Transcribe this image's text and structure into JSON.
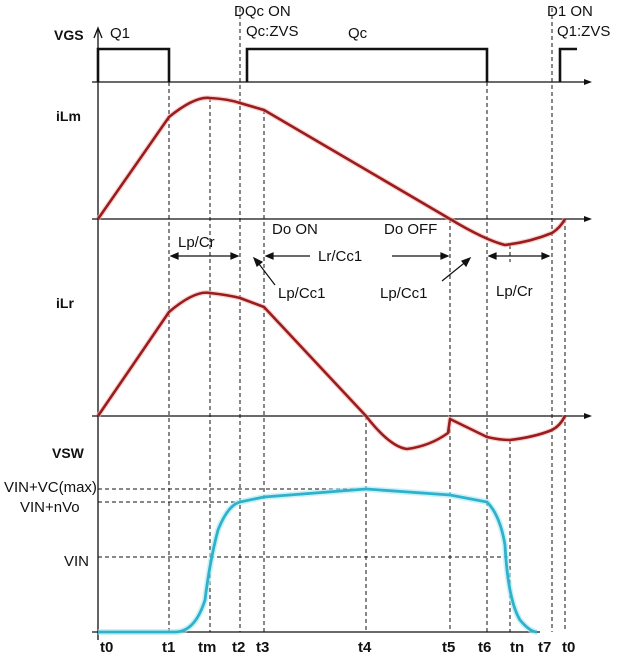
{
  "signals": {
    "vgs": "VGS",
    "ilm": "iLm",
    "ilr": "iLr",
    "vsw": "VSW"
  },
  "gate_labels": {
    "q1": "Q1",
    "dqc_on": "DQc ON",
    "qc_zvs": "Qc:ZVS",
    "qc": "Qc",
    "d1_on": "D1 ON",
    "q1_zvs": "Q1:ZVS"
  },
  "interval_labels": {
    "lp_cr_left": "Lp/Cr",
    "do_on": "Do ON",
    "lr_cc1": "Lr/Cc1",
    "do_off": "Do OFF",
    "lp_cc1_left": "Lp/Cc1",
    "lp_cc1_right": "Lp/Cc1",
    "lp_cr_right": "Lp/Cr"
  },
  "voltage_levels": {
    "vmax": "VIN+VC(max)",
    "vin_nvo": "VIN+nVo",
    "vin": "VIN"
  },
  "time_ticks": [
    "t0",
    "t1",
    "tm",
    "t2",
    "t3",
    "t4",
    "t5",
    "t6",
    "tn",
    "t7",
    "t0"
  ],
  "colors": {
    "current_trace": "#9b1c1c",
    "voltage_trace": "#2eb2cc",
    "gate_trace": "#111111"
  }
}
